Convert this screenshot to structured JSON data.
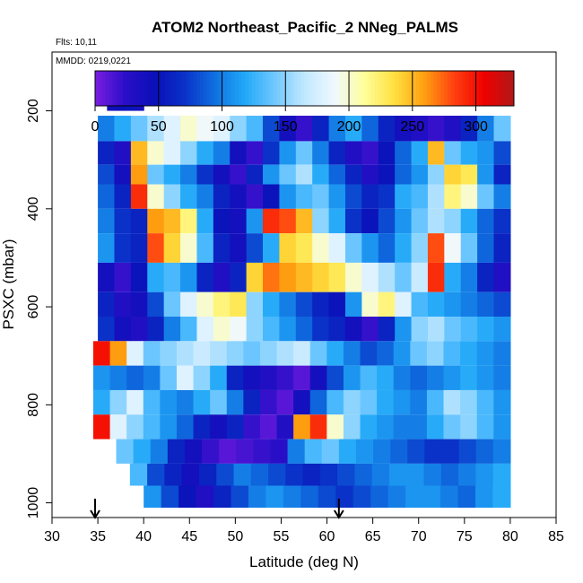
{
  "chart_data": {
    "type": "heatmap",
    "title": "ATOM2 Northeast_Pacific_2 NNeg_PALMS",
    "flights_label": "Flts: 10,11",
    "dates_label": "MMDD: 0219,0221",
    "xlabel": "Latitude (deg N)",
    "ylabel": "PSXC (mbar)",
    "xlim": [
      30,
      85
    ],
    "ylim": [
      1030,
      80
    ],
    "x_ticks": [
      "30",
      "35",
      "40",
      "45",
      "50",
      "55",
      "60",
      "65",
      "70",
      "75",
      "80",
      "85"
    ],
    "y_ticks": [
      "200",
      "400",
      "600",
      "800",
      "1000"
    ],
    "colorbar": {
      "range": [
        0,
        330
      ],
      "tick_labels": [
        "0",
        "50",
        "100",
        "150",
        "200",
        "250",
        "300"
      ],
      "colors": [
        "#7a1de0",
        "#2a0fc8",
        "#0a10b8",
        "#0a32c8",
        "#1070e0",
        "#20a8f8",
        "#70c8ff",
        "#c0e8ff",
        "#f0f8ff",
        "#ffff9a",
        "#ffe040",
        "#ffa010",
        "#ff4010",
        "#f00000",
        "#b01818"
      ]
    },
    "arrows_lat": [
      34.7,
      61.3
    ],
    "bands": [
      {
        "p": [
          170,
          200
        ],
        "lat": [
          36,
          40
        ],
        "v": [
          42,
          45,
          50,
          40
        ]
      },
      {
        "p": [
          210,
          262
        ],
        "lat": [
          35,
          80
        ],
        "v": [
          100,
          120,
          140,
          160,
          180,
          200,
          190,
          180,
          150,
          130,
          80,
          40,
          20,
          60,
          100,
          120,
          90,
          60,
          40,
          30,
          20,
          30,
          60,
          100,
          140
        ]
      },
      {
        "p": [
          262,
          310
        ],
        "lat": [
          35,
          80
        ],
        "v": [
          60,
          30,
          250,
          200,
          180,
          150,
          120,
          100,
          40,
          20,
          70,
          110,
          140,
          100,
          60,
          30,
          20,
          50,
          90,
          120,
          250,
          140,
          120,
          110,
          80
        ]
      },
      {
        "p": [
          310,
          350
        ],
        "lat": [
          35,
          80
        ],
        "v": [
          80,
          40,
          260,
          140,
          120,
          100,
          70,
          40,
          20,
          60,
          110,
          140,
          160,
          120,
          90,
          60,
          30,
          50,
          90,
          110,
          150,
          240,
          230,
          110,
          60
        ]
      },
      {
        "p": [
          350,
          400
        ],
        "lat": [
          35,
          80
        ],
        "v": [
          90,
          60,
          290,
          200,
          150,
          120,
          100,
          60,
          40,
          20,
          50,
          110,
          130,
          140,
          110,
          80,
          60,
          70,
          120,
          130,
          160,
          220,
          200,
          140,
          100
        ]
      },
      {
        "p": [
          400,
          450
        ],
        "lat": [
          35,
          80
        ],
        "v": [
          100,
          70,
          60,
          260,
          250,
          220,
          120,
          50,
          40,
          110,
          290,
          280,
          250,
          150,
          120,
          70,
          50,
          80,
          110,
          140,
          160,
          150,
          120,
          90,
          70
        ]
      },
      {
        "p": [
          450,
          510
        ],
        "lat": [
          35,
          80
        ],
        "v": [
          110,
          70,
          60,
          280,
          240,
          200,
          130,
          60,
          40,
          80,
          120,
          240,
          230,
          200,
          180,
          140,
          110,
          90,
          120,
          150,
          280,
          190,
          140,
          90,
          60
        ]
      },
      {
        "p": [
          510,
          570
        ],
        "lat": [
          35,
          80
        ],
        "v": [
          40,
          20,
          50,
          120,
          130,
          110,
          60,
          30,
          60,
          240,
          270,
          260,
          250,
          240,
          230,
          200,
          180,
          160,
          140,
          170,
          290,
          120,
          100,
          60,
          30
        ]
      },
      {
        "p": [
          570,
          620
        ],
        "lat": [
          35,
          80
        ],
        "v": [
          60,
          30,
          40,
          80,
          140,
          180,
          200,
          220,
          230,
          150,
          120,
          100,
          80,
          60,
          50,
          110,
          200,
          220,
          180,
          130,
          120,
          110,
          100,
          90,
          80
        ]
      },
      {
        "p": [
          620,
          670
        ],
        "lat": [
          35,
          80
        ],
        "v": [
          70,
          40,
          30,
          60,
          100,
          130,
          180,
          200,
          190,
          150,
          130,
          110,
          90,
          70,
          60,
          40,
          20,
          60,
          110,
          150,
          160,
          140,
          130,
          120,
          110
        ]
      },
      {
        "p": [
          670,
          720
        ],
        "lat": [
          34.5,
          80
        ],
        "v": [
          300,
          260,
          180,
          140,
          150,
          160,
          170,
          160,
          150,
          140,
          150,
          160,
          170,
          140,
          120,
          100,
          80,
          90,
          110,
          140,
          150,
          130,
          120,
          110,
          100
        ]
      },
      {
        "p": [
          720,
          770
        ],
        "lat": [
          34.5,
          80
        ],
        "v": [
          110,
          100,
          90,
          100,
          140,
          180,
          150,
          120,
          60,
          40,
          30,
          20,
          10,
          40,
          80,
          110,
          130,
          120,
          100,
          90,
          100,
          110,
          120,
          110,
          100
        ]
      },
      {
        "p": [
          770,
          820
        ],
        "lat": [
          34.5,
          80
        ],
        "v": [
          120,
          150,
          180,
          130,
          110,
          100,
          120,
          140,
          100,
          60,
          20,
          10,
          40,
          90,
          130,
          150,
          140,
          120,
          110,
          100,
          130,
          160,
          150,
          130,
          110
        ]
      },
      {
        "p": [
          820,
          870
        ],
        "lat": [
          34.5,
          80
        ],
        "v": [
          300,
          180,
          150,
          130,
          110,
          90,
          60,
          40,
          60,
          20,
          10,
          30,
          260,
          290,
          200,
          150,
          120,
          110,
          100,
          100,
          120,
          140,
          150,
          130,
          110
        ]
      },
      {
        "p": [
          870,
          920
        ],
        "lat": [
          37,
          80
        ],
        "v": [
          140,
          120,
          100,
          60,
          40,
          20,
          10,
          15,
          20,
          25,
          100,
          130,
          140,
          120,
          110,
          100,
          90,
          80,
          70,
          70,
          80,
          90,
          100
        ]
      },
      {
        "p": [
          920,
          965
        ],
        "lat": [
          38.5,
          80
        ],
        "v": [
          130,
          80,
          60,
          40,
          60,
          80,
          100,
          90,
          80,
          70,
          60,
          70,
          80,
          90,
          100,
          110,
          110,
          100,
          90,
          100,
          110,
          120
        ]
      },
      {
        "p": [
          965,
          1010
        ],
        "lat": [
          40,
          80
        ],
        "v": [
          110,
          80,
          50,
          30,
          60,
          80,
          100,
          110,
          100,
          90,
          80,
          70,
          80,
          90,
          100,
          110,
          110,
          100,
          90,
          110,
          120
        ]
      }
    ]
  }
}
